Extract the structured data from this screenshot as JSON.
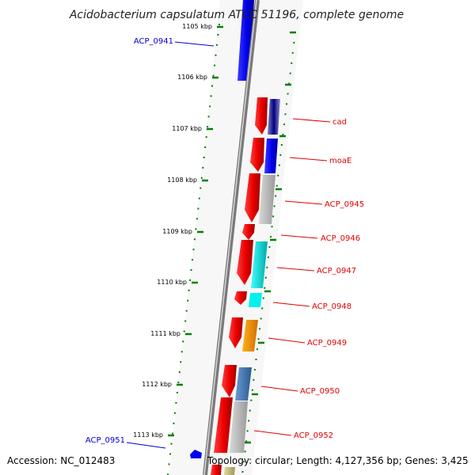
{
  "title": "Acidobacterium capsulatum ATCC 51196, complete genome",
  "footer": {
    "accession": "Accession: NC_012483",
    "topology": "Topology: circular; Length: 4,127,356 bp; Genes: 3,425"
  },
  "colors": {
    "forward_gene": "#ff0000",
    "reverse_gene": "#0000ff",
    "tick": "#008000",
    "backbone": "#808080",
    "label_forward": "#e00000",
    "label_reverse": "#0000cc"
  },
  "ticks": [
    {
      "label": "1105 kbp"
    },
    {
      "label": "1106 kbp"
    },
    {
      "label": "1107 kbp"
    },
    {
      "label": "1108 kbp"
    },
    {
      "label": "1109 kbp"
    },
    {
      "label": "1110 kbp"
    },
    {
      "label": "1111 kbp"
    },
    {
      "label": "1112 kbp"
    },
    {
      "label": "1113 kbp"
    }
  ],
  "gene_labels": [
    {
      "name": "ACP_0941",
      "strand": "reverse"
    },
    {
      "name": "cad",
      "strand": "forward"
    },
    {
      "name": "moaE",
      "strand": "forward"
    },
    {
      "name": "ACP_0945",
      "strand": "forward"
    },
    {
      "name": "ACP_0946",
      "strand": "forward"
    },
    {
      "name": "ACP_0947",
      "strand": "forward"
    },
    {
      "name": "ACP_0948",
      "strand": "forward"
    },
    {
      "name": "ACP_0949",
      "strand": "forward"
    },
    {
      "name": "ACP_0950",
      "strand": "forward"
    },
    {
      "name": "ACP_0952",
      "strand": "forward"
    },
    {
      "name": "ACP_0951",
      "strand": "reverse"
    }
  ]
}
